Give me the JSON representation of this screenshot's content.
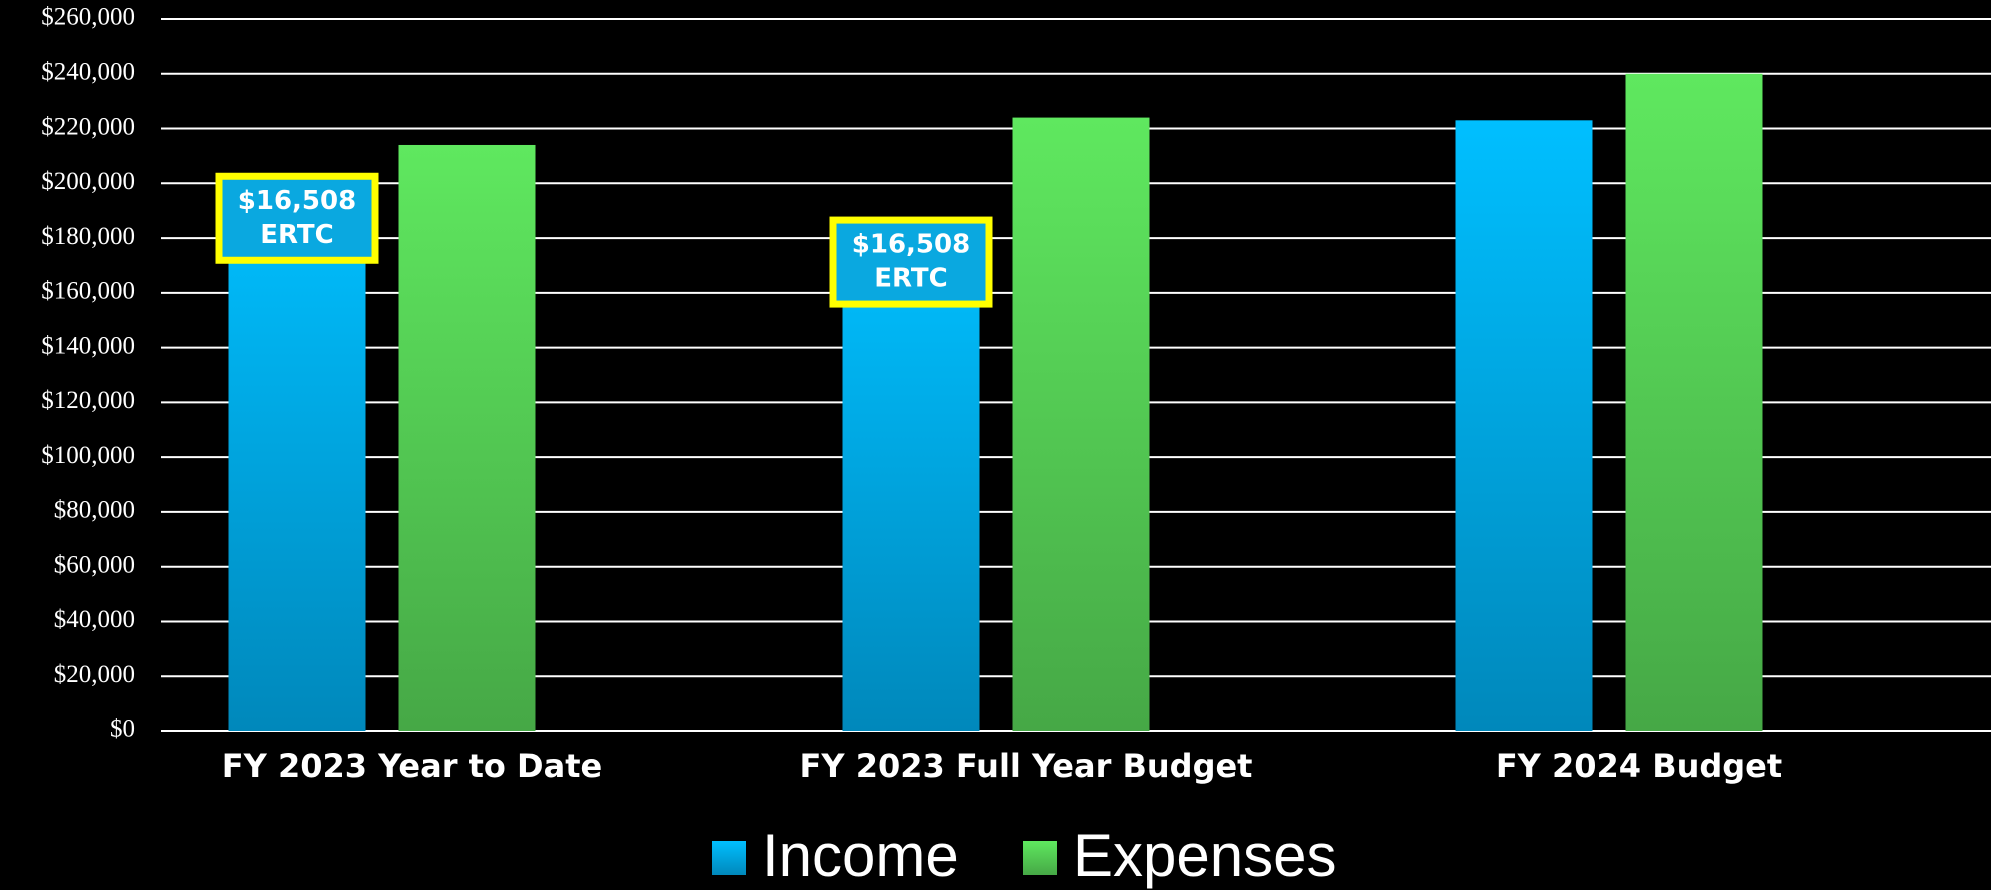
{
  "chart_data": {
    "type": "bar",
    "categories": [
      "FY 2023 Year to Date",
      "FY 2023 Full Year Budget",
      "FY 2024 Budget"
    ],
    "series": [
      {
        "name": "Income",
        "color": "#00bfff",
        "values": [
          196000,
          180000,
          223000
        ]
      },
      {
        "name": "Expenses",
        "color": "#5fe85f",
        "values": [
          214000,
          224000,
          240000
        ]
      }
    ],
    "ylim": [
      0,
      260000
    ],
    "yticks": [
      {
        "value": 0,
        "label": "$0"
      },
      {
        "value": 20000,
        "label": "$20,000"
      },
      {
        "value": 40000,
        "label": "$40,000"
      },
      {
        "value": 60000,
        "label": "$60,000"
      },
      {
        "value": 80000,
        "label": "$80,000"
      },
      {
        "value": 100000,
        "label": "$100,000"
      },
      {
        "value": 120000,
        "label": "$120,000"
      },
      {
        "value": 140000,
        "label": "$140,000"
      },
      {
        "value": 160000,
        "label": "$160,000"
      },
      {
        "value": 180000,
        "label": "$180,000"
      },
      {
        "value": 200000,
        "label": "$200,000"
      },
      {
        "value": 220000,
        "label": "$220,000"
      },
      {
        "value": 240000,
        "label": "$240,000"
      },
      {
        "value": 260000,
        "label": "$260,000"
      }
    ],
    "grid": true,
    "legend": "bottom",
    "annotations": [
      {
        "category": "FY 2023 Year to Date",
        "lines": [
          "$16,508",
          "ERTC"
        ]
      },
      {
        "category": "FY 2023 Full Year Budget",
        "lines": [
          "$16,508",
          "ERTC"
        ]
      }
    ]
  }
}
